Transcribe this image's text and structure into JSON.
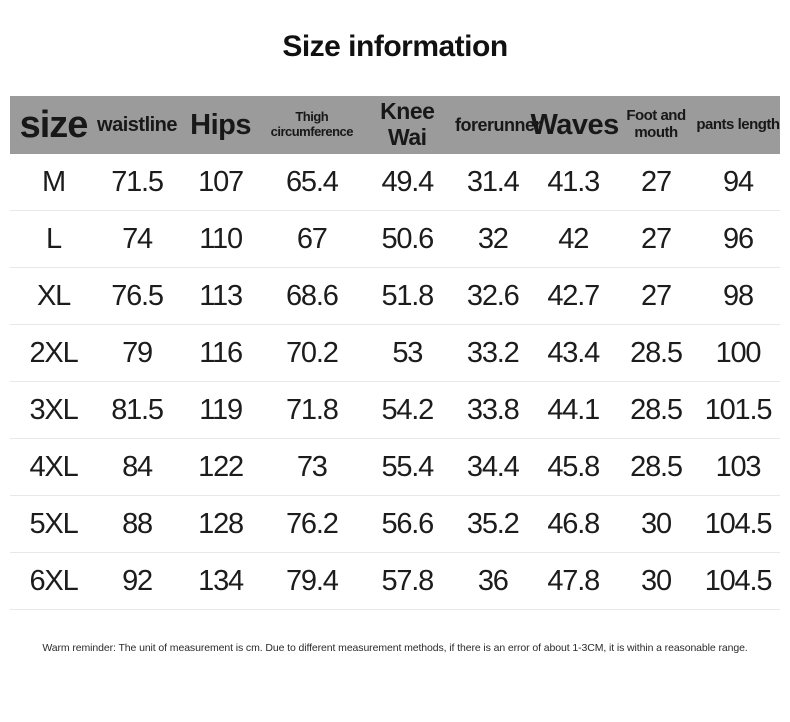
{
  "title": "Size information",
  "table": {
    "columns": [
      {
        "key": "size",
        "label": "size"
      },
      {
        "key": "waistline",
        "label": "waistline"
      },
      {
        "key": "hips",
        "label": "Hips"
      },
      {
        "key": "thigh-circumference",
        "label": "Thigh circumference"
      },
      {
        "key": "knee-wai",
        "label": "Knee Wai"
      },
      {
        "key": "forerunner",
        "label": "forerunner"
      },
      {
        "key": "waves",
        "label": "Waves"
      },
      {
        "key": "foot-and-mouth",
        "label": "Foot and mouth"
      },
      {
        "key": "pants-length",
        "label": "pants length"
      }
    ],
    "rows": [
      [
        "M",
        "71.5",
        "107",
        "65.4",
        "49.4",
        "31.4",
        "41.3",
        "27",
        "94"
      ],
      [
        "L",
        "74",
        "110",
        "67",
        "50.6",
        "32",
        "42",
        "27",
        "96"
      ],
      [
        "XL",
        "76.5",
        "113",
        "68.6",
        "51.8",
        "32.6",
        "42.7",
        "27",
        "98"
      ],
      [
        "2XL",
        "79",
        "116",
        "70.2",
        "53",
        "33.2",
        "43.4",
        "28.5",
        "100"
      ],
      [
        "3XL",
        "81.5",
        "119",
        "71.8",
        "54.2",
        "33.8",
        "44.1",
        "28.5",
        "101.5"
      ],
      [
        "4XL",
        "84",
        "122",
        "73",
        "55.4",
        "34.4",
        "45.8",
        "28.5",
        "103"
      ],
      [
        "5XL",
        "88",
        "128",
        "76.2",
        "56.6",
        "35.2",
        "46.8",
        "30",
        "104.5"
      ],
      [
        "6XL",
        "92",
        "134",
        "79.4",
        "57.8",
        "36",
        "47.8",
        "30",
        "104.5"
      ]
    ]
  },
  "footer": {
    "note": "Warm reminder: The unit of measurement is cm. Due to different measurement methods, if there is an error of about 1-3CM, it is within a reasonable range."
  },
  "colors": {
    "background": "#ffffff",
    "header_bg": "#9b9b9b",
    "text": "#1c1c1c",
    "divider": "#e8e8e8"
  },
  "chart_data": {
    "type": "table",
    "title": "Size information",
    "unit": "cm",
    "columns": [
      "size",
      "waistline",
      "Hips",
      "Thigh circumference",
      "Knee Wai",
      "forerunner",
      "Waves",
      "Foot and mouth",
      "pants length"
    ],
    "rows": [
      [
        "M",
        71.5,
        107,
        65.4,
        49.4,
        31.4,
        41.3,
        27,
        94
      ],
      [
        "L",
        74,
        110,
        67,
        50.6,
        32,
        42,
        27,
        96
      ],
      [
        "XL",
        76.5,
        113,
        68.6,
        51.8,
        32.6,
        42.7,
        27,
        98
      ],
      [
        "2XL",
        79,
        116,
        70.2,
        53,
        33.2,
        43.4,
        28.5,
        100
      ],
      [
        "3XL",
        81.5,
        119,
        71.8,
        54.2,
        33.8,
        44.1,
        28.5,
        101.5
      ],
      [
        "4XL",
        84,
        122,
        73,
        55.4,
        34.4,
        45.8,
        28.5,
        103
      ],
      [
        "5XL",
        88,
        128,
        76.2,
        56.6,
        35.2,
        46.8,
        30,
        104.5
      ],
      [
        "6XL",
        92,
        134,
        79.4,
        57.8,
        36,
        47.8,
        30,
        104.5
      ]
    ],
    "note": "Warm reminder: The unit of measurement is cm. Due to different measurement methods, if there is an error of about 1-3CM, it is within a reasonable range."
  }
}
